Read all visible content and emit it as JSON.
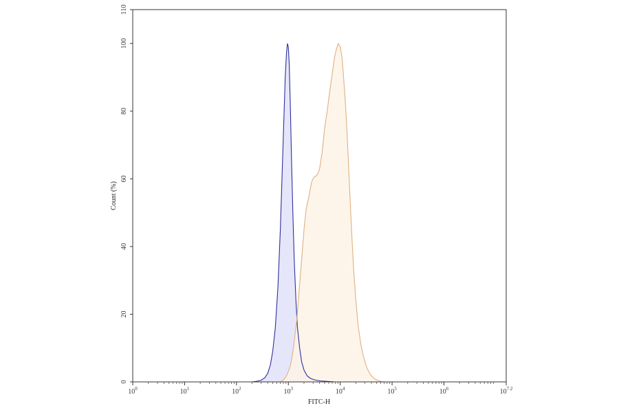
{
  "chart_data": {
    "type": "area",
    "title": "",
    "xlabel": "FITC-H",
    "ylabel": "Count (%)",
    "x_scale": "log10",
    "xlim": [
      1,
      15848932
    ],
    "ylim": [
      0,
      110
    ],
    "grid": false,
    "x_ticks": [
      {
        "value": 1,
        "base": "10",
        "exp": "0"
      },
      {
        "value": 10,
        "base": "10",
        "exp": "1"
      },
      {
        "value": 100,
        "base": "10",
        "exp": "2"
      },
      {
        "value": 1000,
        "base": "10",
        "exp": "3"
      },
      {
        "value": 10000,
        "base": "10",
        "exp": "4"
      },
      {
        "value": 100000,
        "base": "10",
        "exp": "5"
      },
      {
        "value": 1000000,
        "base": "10",
        "exp": "6"
      },
      {
        "value": 15848932,
        "base": "10",
        "exp": "7.2"
      }
    ],
    "y_ticks": [
      "0",
      "20",
      "40",
      "60",
      "80",
      "100",
      "110"
    ],
    "series": [
      {
        "color": "#2e2e9a",
        "fill": "#e2e2fa",
        "x": [
          200,
          250,
          300,
          350,
          400,
          450,
          500,
          560,
          630,
          700,
          760,
          820,
          870,
          920,
          960,
          1000,
          1040,
          1090,
          1150,
          1220,
          1300,
          1400,
          1500,
          1650,
          1800,
          2000,
          2300,
          2700,
          3200,
          4000,
          5000,
          6500,
          8000
        ],
        "y": [
          0,
          0.2,
          0.5,
          1.2,
          2.5,
          5,
          9,
          16,
          28,
          45,
          62,
          78,
          90,
          97,
          100,
          99,
          94,
          82,
          66,
          50,
          36,
          24,
          16,
          10,
          6,
          3.5,
          1.8,
          1.0,
          0.6,
          0.3,
          0.2,
          0.1,
          0
        ]
      },
      {
        "color": "#e0b080",
        "fill": "#fdf3e6",
        "x": [
          700,
          800,
          900,
          1000,
          1100,
          1200,
          1300,
          1450,
          1600,
          1800,
          2000,
          2200,
          2500,
          2800,
          3100,
          3400,
          3700,
          4000,
          4500,
          5000,
          5600,
          6300,
          7000,
          7800,
          8500,
          9200,
          10000,
          10800,
          11500,
          12500,
          13500,
          15000,
          16500,
          18000,
          20000,
          22000,
          25000,
          28000,
          32000,
          36000,
          40000,
          45000,
          50000,
          56000,
          63000,
          70000
        ],
        "y": [
          0,
          0.5,
          1.5,
          3,
          5,
          8,
          12,
          18,
          26,
          36,
          45,
          51,
          55,
          59,
          60.5,
          60.8,
          61.5,
          63,
          68,
          75,
          80,
          86,
          91,
          96,
          98.5,
          100,
          99,
          96,
          91,
          83,
          74,
          59,
          45,
          34,
          24,
          17,
          11,
          7.5,
          4.5,
          2.8,
          1.8,
          1.0,
          0.6,
          0.3,
          0.1,
          0
        ]
      }
    ]
  }
}
